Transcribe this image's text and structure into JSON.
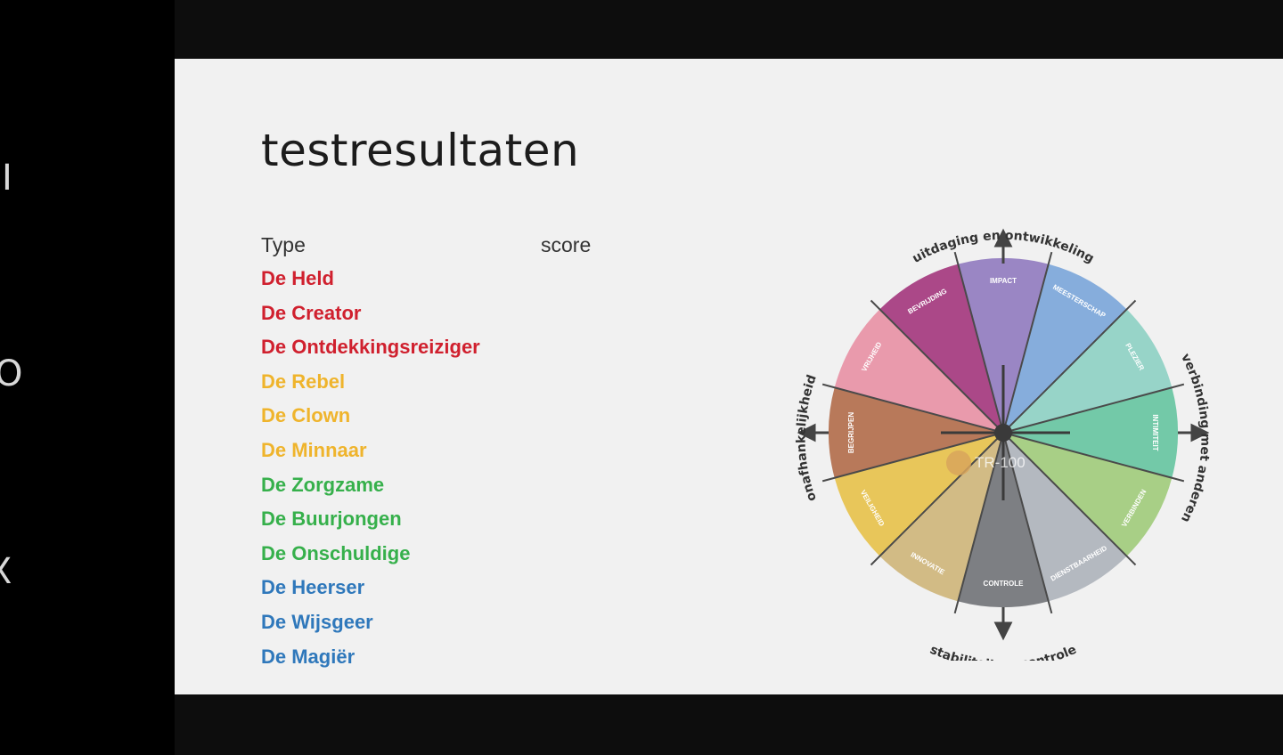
{
  "left_strip": {
    "glyphs": [
      "I",
      "O",
      "X"
    ]
  },
  "slide": {
    "title": "testresultaten",
    "columns": {
      "type": "Type",
      "score": "score"
    },
    "types": [
      {
        "label": "De Held",
        "color": "#d0202e"
      },
      {
        "label": "De Creator",
        "color": "#d0202e"
      },
      {
        "label": "De Ontdekkingsreiziger",
        "color": "#d0202e"
      },
      {
        "label": "De Rebel",
        "color": "#efb42c"
      },
      {
        "label": "De Clown",
        "color": "#efb42c"
      },
      {
        "label": "De Minnaar",
        "color": "#efb42c"
      },
      {
        "label": "De Zorgzame",
        "color": "#36b04b"
      },
      {
        "label": "De Buurjongen",
        "color": "#36b04b"
      },
      {
        "label": "De Onschuldige",
        "color": "#36b04b"
      },
      {
        "label": "De Heerser",
        "color": "#2f78bb"
      },
      {
        "label": "De Wijsgeer",
        "color": "#2f78bb"
      },
      {
        "label": "De Magiër",
        "color": "#2f78bb"
      }
    ]
  },
  "wheel": {
    "axis_labels": {
      "top": "uitdaging en ontwikkeling",
      "right": "verbinding met anderen",
      "bottom": "stabiliteit en controle",
      "left": "onafhankelijkheid"
    },
    "segments": [
      {
        "label": "IMPACT",
        "color": "#9a86c4"
      },
      {
        "label": "MEESTERSCHAP",
        "color": "#86addc"
      },
      {
        "label": "PLEZIER",
        "color": "#97d4c8"
      },
      {
        "label": "INTIMITEIT",
        "color": "#73c9a8"
      },
      {
        "label": "VERBINDEN",
        "color": "#a8cf86"
      },
      {
        "label": "DIENSTBAARHEID",
        "color": "#b4b9c0"
      },
      {
        "label": "CONTROLE",
        "color": "#7d7f83"
      },
      {
        "label": "INNOVATIE",
        "color": "#d2bb85"
      },
      {
        "label": "VEILIGHEID",
        "color": "#e8c65a"
      },
      {
        "label": "BEGRIJPEN",
        "color": "#b8795a"
      },
      {
        "label": "VRIJHEID",
        "color": "#e99aac"
      },
      {
        "label": "BEVRIJDING",
        "color": "#ab4888"
      }
    ],
    "logo_text": "TR-100"
  }
}
